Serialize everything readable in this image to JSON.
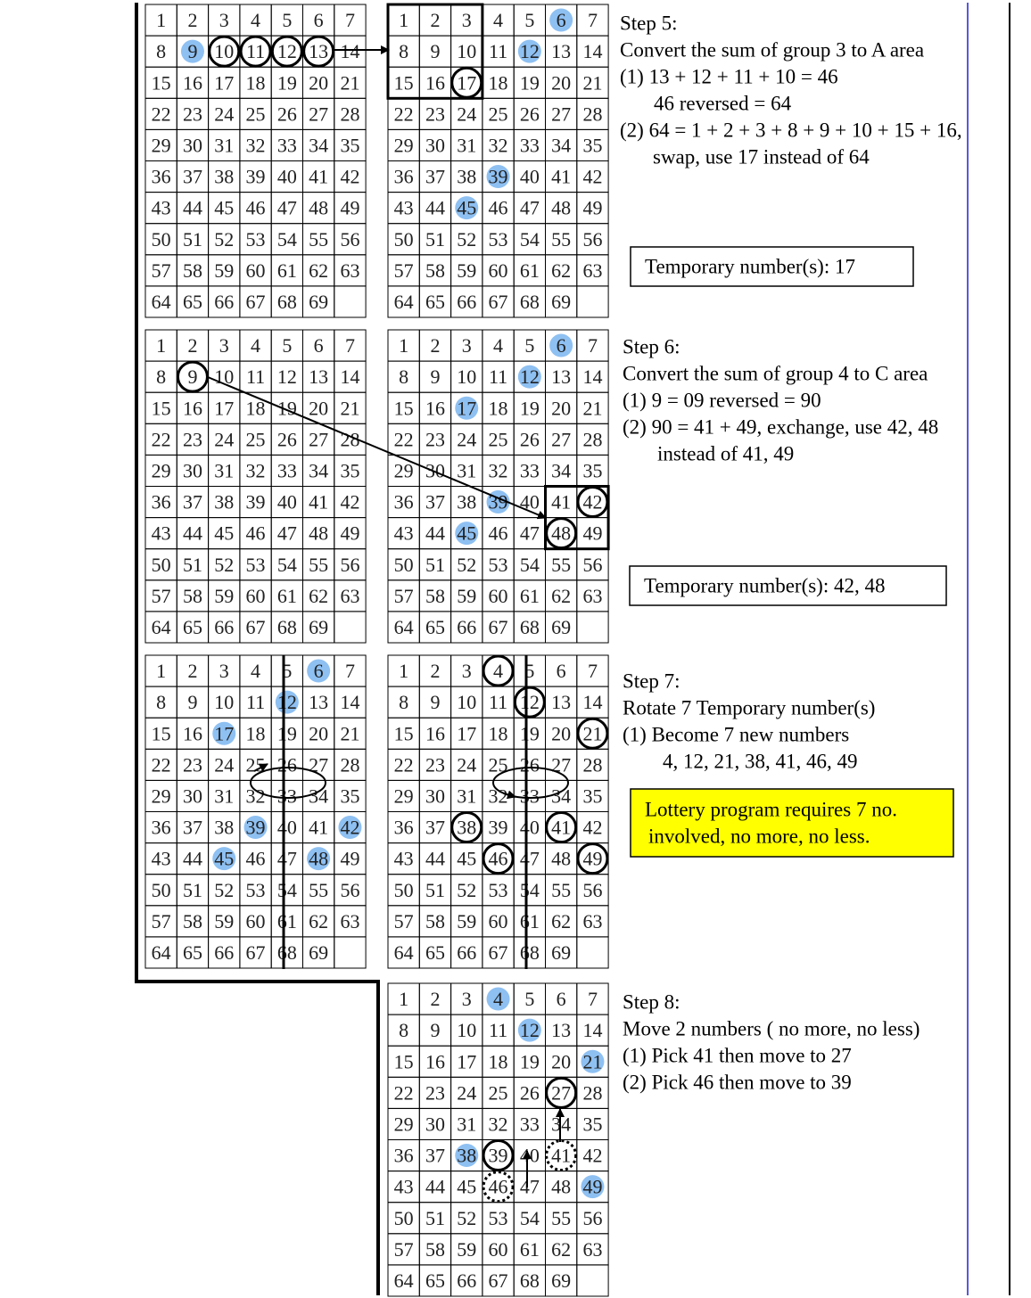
{
  "grids": [
    {
      "cells": [
        1,
        2,
        3,
        4,
        5,
        6,
        7,
        8,
        9,
        10,
        11,
        12,
        13,
        14,
        15,
        16,
        17,
        18,
        19,
        20,
        21,
        22,
        23,
        24,
        25,
        26,
        27,
        28,
        29,
        30,
        31,
        32,
        33,
        34,
        35,
        36,
        37,
        38,
        39,
        40,
        41,
        42,
        43,
        44,
        45,
        46,
        47,
        48,
        49,
        50,
        51,
        52,
        53,
        54,
        55,
        56,
        57,
        58,
        59,
        60,
        61,
        62,
        63,
        64,
        65,
        66,
        67,
        68,
        69
      ],
      "highlighted": [
        9
      ],
      "circled": [
        10,
        11,
        12,
        13
      ],
      "dotted": []
    },
    {
      "cells": [
        1,
        2,
        3,
        4,
        5,
        6,
        7,
        8,
        9,
        10,
        11,
        12,
        13,
        14,
        15,
        16,
        17,
        18,
        19,
        20,
        21,
        22,
        23,
        24,
        25,
        26,
        27,
        28,
        29,
        30,
        31,
        32,
        33,
        34,
        35,
        36,
        37,
        38,
        39,
        40,
        41,
        42,
        43,
        44,
        45,
        46,
        47,
        48,
        49,
        50,
        51,
        52,
        53,
        54,
        55,
        56,
        57,
        58,
        59,
        60,
        61,
        62,
        63,
        64,
        65,
        66,
        67,
        68,
        69
      ],
      "highlighted": [
        6,
        12,
        39,
        45
      ],
      "circled": [
        17
      ],
      "dotted": []
    },
    {
      "cells": [
        1,
        2,
        3,
        4,
        5,
        6,
        7,
        8,
        9,
        10,
        11,
        12,
        13,
        14,
        15,
        16,
        17,
        18,
        19,
        20,
        21,
        22,
        23,
        24,
        25,
        26,
        27,
        28,
        29,
        30,
        31,
        32,
        33,
        34,
        35,
        36,
        37,
        38,
        39,
        40,
        41,
        42,
        43,
        44,
        45,
        46,
        47,
        48,
        49,
        50,
        51,
        52,
        53,
        54,
        55,
        56,
        57,
        58,
        59,
        60,
        61,
        62,
        63,
        64,
        65,
        66,
        67,
        68,
        69
      ],
      "highlighted": [],
      "circled": [
        9
      ],
      "dotted": []
    },
    {
      "cells": [
        1,
        2,
        3,
        4,
        5,
        6,
        7,
        8,
        9,
        10,
        11,
        12,
        13,
        14,
        15,
        16,
        17,
        18,
        19,
        20,
        21,
        22,
        23,
        24,
        25,
        26,
        27,
        28,
        29,
        30,
        31,
        32,
        33,
        34,
        35,
        36,
        37,
        38,
        39,
        40,
        41,
        42,
        43,
        44,
        45,
        46,
        47,
        48,
        49,
        50,
        51,
        52,
        53,
        54,
        55,
        56,
        57,
        58,
        59,
        60,
        61,
        62,
        63,
        64,
        65,
        66,
        67,
        68,
        69
      ],
      "highlighted": [
        6,
        12,
        17,
        39,
        45
      ],
      "circled": [
        42,
        48
      ],
      "dotted": []
    },
    {
      "cells": [
        1,
        2,
        3,
        4,
        5,
        6,
        7,
        8,
        9,
        10,
        11,
        12,
        13,
        14,
        15,
        16,
        17,
        18,
        19,
        20,
        21,
        22,
        23,
        24,
        25,
        26,
        27,
        28,
        29,
        30,
        31,
        32,
        33,
        34,
        35,
        36,
        37,
        38,
        39,
        40,
        41,
        42,
        43,
        44,
        45,
        46,
        47,
        48,
        49,
        50,
        51,
        52,
        53,
        54,
        55,
        56,
        57,
        58,
        59,
        60,
        61,
        62,
        63,
        64,
        65,
        66,
        67,
        68,
        69
      ],
      "highlighted": [
        6,
        12,
        17,
        39,
        42,
        45,
        48
      ],
      "circled": [],
      "dotted": []
    },
    {
      "cells": [
        1,
        2,
        3,
        4,
        5,
        6,
        7,
        8,
        9,
        10,
        11,
        12,
        13,
        14,
        15,
        16,
        17,
        18,
        19,
        20,
        21,
        22,
        23,
        24,
        25,
        26,
        27,
        28,
        29,
        30,
        31,
        32,
        33,
        34,
        35,
        36,
        37,
        38,
        39,
        40,
        41,
        42,
        43,
        44,
        45,
        46,
        47,
        48,
        49,
        50,
        51,
        52,
        53,
        54,
        55,
        56,
        57,
        58,
        59,
        60,
        61,
        62,
        63,
        64,
        65,
        66,
        67,
        68,
        69
      ],
      "highlighted": [],
      "circled": [
        4,
        12,
        21,
        38,
        41,
        46,
        49
      ],
      "dotted": []
    },
    {
      "cells": [
        1,
        2,
        3,
        4,
        5,
        6,
        7,
        8,
        9,
        10,
        11,
        12,
        13,
        14,
        15,
        16,
        17,
        18,
        19,
        20,
        21,
        22,
        23,
        24,
        25,
        26,
        27,
        28,
        29,
        30,
        31,
        32,
        33,
        34,
        35,
        36,
        37,
        38,
        39,
        40,
        41,
        42,
        43,
        44,
        45,
        46,
        47,
        48,
        49,
        50,
        51,
        52,
        53,
        54,
        55,
        56,
        57,
        58,
        59,
        60,
        61,
        62,
        63,
        64,
        65,
        66,
        67,
        68,
        69
      ],
      "highlighted": [
        4,
        12,
        21,
        38,
        49
      ],
      "circled": [
        27,
        39
      ],
      "dotted": [
        41,
        46
      ]
    }
  ],
  "steps": [
    {
      "lines": [
        "Step 5:",
        "Convert the sum of group 3 to A area",
        "(1) 13 + 12 + 11 + 10 = 46",
        "46 reversed = 64",
        "(2) 64 = 1 + 2 + 3 + 8 + 9 + 10 + 15 + 16,",
        "swap, use 17 instead of 64"
      ],
      "note": [
        "Temporary number(s):  17"
      ]
    },
    {
      "lines": [
        "Step 6:",
        "Convert the sum of group 4 to C area",
        "(1) 9 = 09 reversed = 90",
        "(2) 90 = 41 + 49, exchange, use 42, 48",
        "instead of 41, 49"
      ],
      "note": [
        "Temporary number(s):  42, 48"
      ]
    },
    {
      "lines": [
        "Step 7:",
        "Rotate 7 Temporary number(s)",
        "(1)  Become 7 new numbers",
        "4, 12, 21, 38, 41, 46, 49"
      ],
      "note": [
        "Lottery program requires 7 no.",
        "involved, no more, no less."
      ]
    },
    {
      "lines": [
        "Step 8:",
        "Move 2 numbers ( no more, no less)",
        "(1)  Pick 41 then move to 27",
        "(2)  Pick 46 then move to 39"
      ],
      "note": []
    }
  ]
}
